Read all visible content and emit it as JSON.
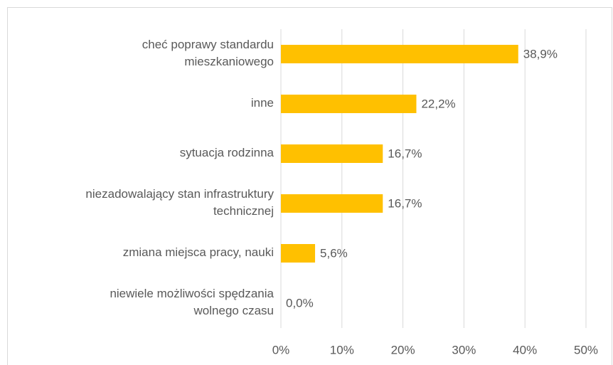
{
  "chart_data": {
    "type": "bar",
    "orientation": "horizontal",
    "categories": [
      "cheć poprawy standardu mieszkaniowego",
      "inne",
      "sytuacja rodzinna",
      "niezadowalający stan infrastruktury technicznej",
      "zmiana miejsca pracy, nauki",
      "niewiele możliwości spędzania wolnego czasu"
    ],
    "values": [
      38.9,
      22.2,
      16.7,
      16.7,
      5.6,
      0.0
    ],
    "value_labels": [
      "38,9%",
      "22,2%",
      "16,7%",
      "16,7%",
      "5,6%",
      "0,0%"
    ],
    "color": "#ffc000",
    "xlim": [
      0,
      50
    ],
    "xticks": [
      {
        "value": 0,
        "label": "0%"
      },
      {
        "value": 10,
        "label": "10%"
      },
      {
        "value": 20,
        "label": "20%"
      },
      {
        "value": 30,
        "label": "30%"
      },
      {
        "value": 40,
        "label": "40%"
      },
      {
        "value": 50,
        "label": "50%"
      }
    ],
    "grid": true
  }
}
